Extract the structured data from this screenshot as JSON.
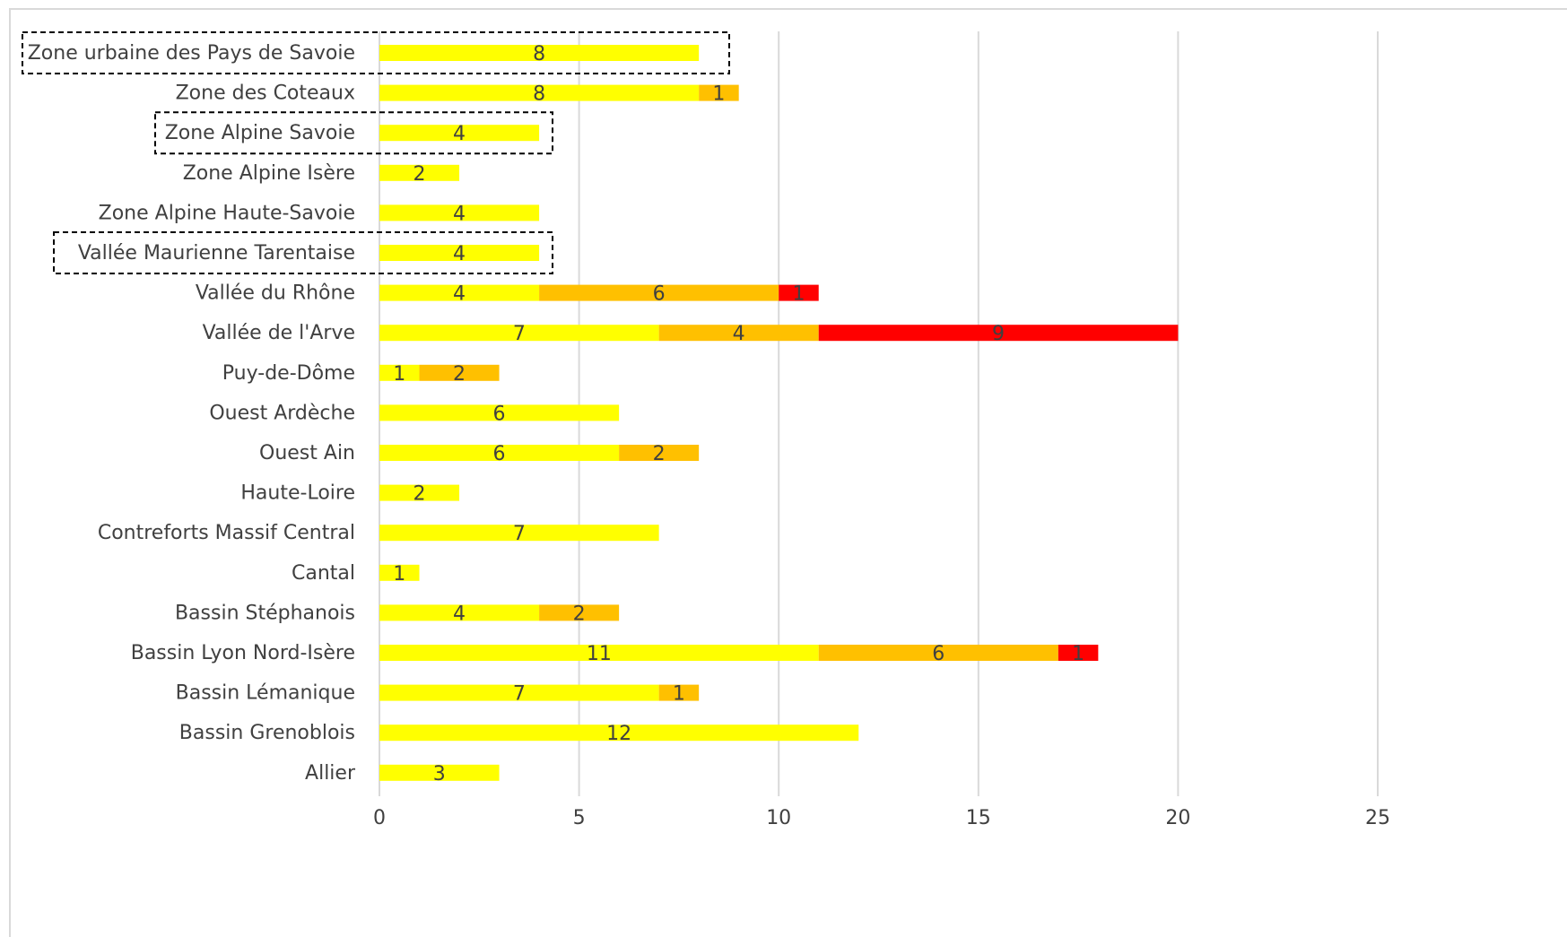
{
  "chart_data": {
    "type": "bar",
    "orientation": "horizontal",
    "stacked": true,
    "title": "",
    "xlabel": "",
    "ylabel": "",
    "xlim": [
      0,
      25
    ],
    "x_ticks": [
      0,
      5,
      10,
      15,
      20,
      25
    ],
    "grid": "vertical",
    "legend": "none",
    "categories": [
      "Zone urbaine des Pays de Savoie",
      "Zone des Coteaux",
      "Zone Alpine Savoie",
      "Zone Alpine Isère",
      "Zone Alpine Haute-Savoie",
      "Vallée Maurienne Tarentaise",
      "Vallée du Rhône",
      "Vallée de l'Arve",
      "Puy-de-Dôme",
      "Ouest Ardèche",
      "Ouest Ain",
      "Haute-Loire",
      "Contreforts Massif Central",
      "Cantal",
      "Bassin Stéphanois",
      "Bassin Lyon Nord-Isère",
      "Bassin Lémanique",
      "Bassin Grenoblois",
      "Allier"
    ],
    "series": [
      {
        "color": "#ffff00",
        "values": [
          8,
          8,
          4,
          2,
          4,
          4,
          4,
          7,
          1,
          6,
          6,
          2,
          7,
          1,
          4,
          11,
          7,
          12,
          3
        ]
      },
      {
        "color": "#ffc000",
        "values": [
          0,
          1,
          0,
          0,
          0,
          0,
          6,
          4,
          2,
          0,
          2,
          0,
          0,
          0,
          2,
          6,
          1,
          0,
          0
        ]
      },
      {
        "color": "#ff0000",
        "values": [
          0,
          0,
          0,
          0,
          0,
          0,
          1,
          9,
          0,
          0,
          0,
          0,
          0,
          0,
          0,
          1,
          0,
          0,
          0
        ]
      }
    ],
    "highlighted_categories": [
      "Zone urbaine des Pays de Savoie",
      "Zone Alpine Savoie",
      "Vallée Maurienne Tarentaise"
    ]
  }
}
